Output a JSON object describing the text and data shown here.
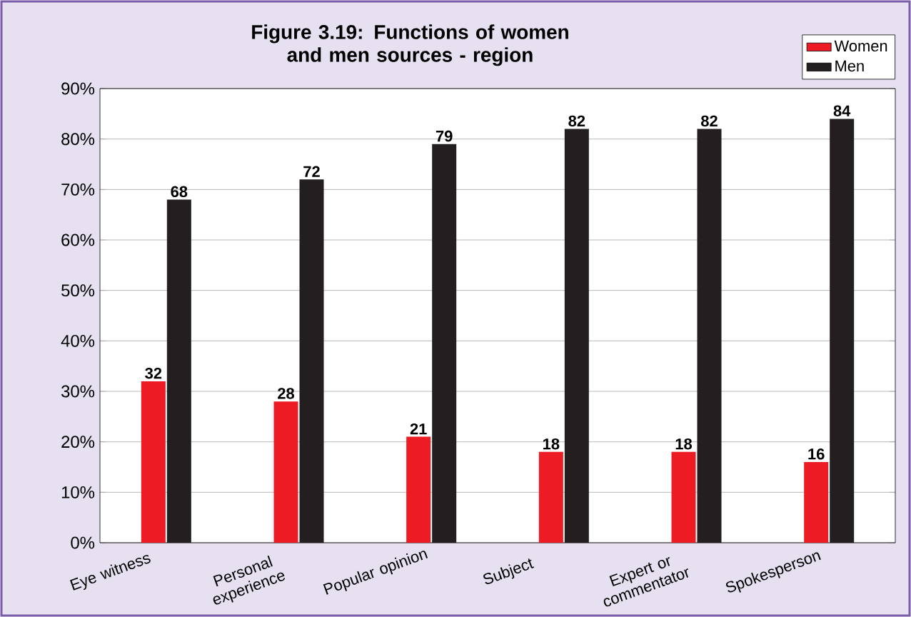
{
  "chart_data": {
    "type": "bar",
    "title": "Figure 3.19: Functions of women and men sources - region",
    "categories": [
      "Eye witness",
      "Personal experience",
      "Popular opinion",
      "Subject",
      "Expert or commentator",
      "Spokesperson"
    ],
    "series": [
      {
        "name": "Women",
        "color": "#ed1c24",
        "values": [
          32,
          28,
          21,
          18,
          18,
          16
        ]
      },
      {
        "name": "Men",
        "color": "#231f20",
        "values": [
          68,
          72,
          79,
          82,
          82,
          84
        ]
      }
    ],
    "ylim": [
      0,
      90
    ],
    "yticks": [
      {
        "value": 0,
        "label": "0%"
      },
      {
        "value": 10,
        "label": "10%"
      },
      {
        "value": 20,
        "label": "20%"
      },
      {
        "value": 30,
        "label": "30%"
      },
      {
        "value": 40,
        "label": "40%"
      },
      {
        "value": 50,
        "label": "50%"
      },
      {
        "value": 60,
        "label": "60%"
      },
      {
        "value": 70,
        "label": "70%"
      },
      {
        "value": 80,
        "label": "80%"
      },
      {
        "value": 90,
        "label": "90%"
      }
    ],
    "grid": "y",
    "legend": "top right",
    "data_labels": true
  }
}
